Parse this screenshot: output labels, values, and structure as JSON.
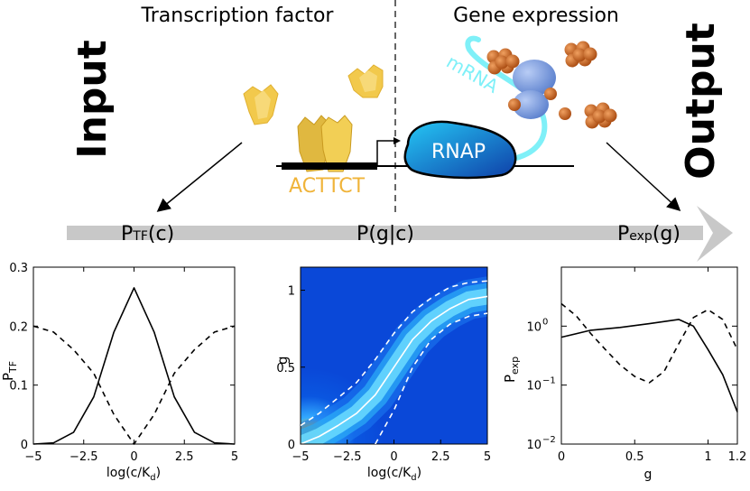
{
  "header": {
    "left_title": "Transcription factor",
    "right_title": "Gene expression",
    "input_label": "Input",
    "output_label": "Output"
  },
  "cartoon": {
    "binding_site": "ACTTCT",
    "polymerase": "RNAP",
    "transcript": "mRNA",
    "colors": {
      "tf": "#f2c94c",
      "site": "#f0b43a",
      "rnap": "#1aa7e0",
      "mrna": "#7ff0f8",
      "protein": "#d2691e",
      "ribosome": "#7b9fe0"
    }
  },
  "flow": {
    "left": {
      "main": "P",
      "sub": "TF",
      "arg": "(c)"
    },
    "middle": "P(g|c)",
    "right": {
      "main": "P",
      "sub": "exp",
      "arg": "(g)"
    }
  },
  "panels": {
    "a": {
      "ylabel_main": "P",
      "ylabel_sub": "TF",
      "xlabel_main": "log(c/K",
      "xlabel_sub": "d",
      "xlabel_end": ")",
      "xticks": [
        "-5",
        "-2.5",
        "0",
        "2.5",
        "5"
      ],
      "yticks": [
        "0",
        "0.1",
        "0.2",
        "0.3"
      ]
    },
    "b": {
      "ylabel": "g",
      "xlabel_main": "log(c/K",
      "xlabel_sub": "d",
      "xlabel_end": ")",
      "xticks": [
        "-5",
        "-2.5",
        "0",
        "2.5",
        "5"
      ],
      "yticks": [
        "0",
        "0.5",
        "1"
      ]
    },
    "c": {
      "ylabel_main": "P",
      "ylabel_sub": "exp",
      "xlabel": "g",
      "xticks": [
        "0",
        "0.5",
        "1",
        "1.2"
      ],
      "yticks": [
        {
          "base": "10",
          "exp": "0"
        },
        {
          "base": "10",
          "exp": "-1"
        },
        {
          "base": "10",
          "exp": "-2"
        }
      ]
    }
  },
  "chart_data": [
    {
      "type": "line",
      "xlim": [
        -5,
        5
      ],
      "ylim": [
        0,
        0.3
      ],
      "series": [
        {
          "style": "solid",
          "x": [
            -5,
            -4,
            -3,
            -2,
            -1,
            0,
            1,
            2,
            3,
            4,
            5
          ],
          "y": [
            0.0,
            0.002,
            0.02,
            0.08,
            0.19,
            0.265,
            0.19,
            0.08,
            0.02,
            0.002,
            0.0
          ]
        },
        {
          "style": "dashed",
          "x": [
            -5,
            -4,
            -3,
            -2,
            -1,
            0,
            1,
            2,
            3,
            4,
            5
          ],
          "y": [
            0.2,
            0.19,
            0.16,
            0.12,
            0.05,
            0.0,
            0.05,
            0.12,
            0.16,
            0.19,
            0.2
          ]
        }
      ]
    },
    {
      "type": "heatmap",
      "xlim": [
        -5,
        5
      ],
      "ylim": [
        0,
        1.15
      ],
      "series": [
        {
          "style": "solid",
          "color": "#ffffff",
          "x": [
            -5,
            -4,
            -3,
            -2,
            -1,
            0,
            1,
            2,
            3,
            4,
            5
          ],
          "y": [
            0.0,
            0.05,
            0.12,
            0.2,
            0.32,
            0.5,
            0.68,
            0.8,
            0.88,
            0.94,
            0.96
          ]
        },
        {
          "style": "dashed",
          "color": "#ffffff",
          "x": [
            -5,
            -4,
            -3,
            -2,
            -1,
            0,
            1,
            2,
            3,
            4,
            5
          ],
          "y": [
            0.12,
            0.2,
            0.3,
            0.4,
            0.55,
            0.72,
            0.86,
            0.95,
            1.02,
            1.05,
            1.06
          ]
        },
        {
          "style": "dashed",
          "color": "#ffffff",
          "x": [
            -1,
            0,
            1,
            2,
            3,
            4,
            5
          ],
          "y": [
            0.0,
            0.22,
            0.5,
            0.68,
            0.78,
            0.83,
            0.85
          ]
        }
      ]
    },
    {
      "type": "line",
      "xlim": [
        0,
        1.2
      ],
      "ylim_log10": [
        -2,
        1
      ],
      "yscale": "log",
      "series": [
        {
          "style": "solid",
          "x": [
            0,
            0.2,
            0.4,
            0.6,
            0.8,
            0.9,
            1.0,
            1.1,
            1.2
          ],
          "y": [
            0.65,
            0.85,
            0.95,
            1.1,
            1.3,
            1.0,
            0.4,
            0.15,
            0.035
          ]
        },
        {
          "style": "dashed",
          "x": [
            0,
            0.1,
            0.2,
            0.3,
            0.4,
            0.5,
            0.6,
            0.7,
            0.8,
            0.9,
            1.0,
            1.1,
            1.2
          ],
          "y": [
            2.4,
            1.5,
            0.75,
            0.4,
            0.22,
            0.14,
            0.11,
            0.17,
            0.5,
            1.4,
            1.9,
            1.3,
            0.4
          ]
        }
      ]
    }
  ]
}
